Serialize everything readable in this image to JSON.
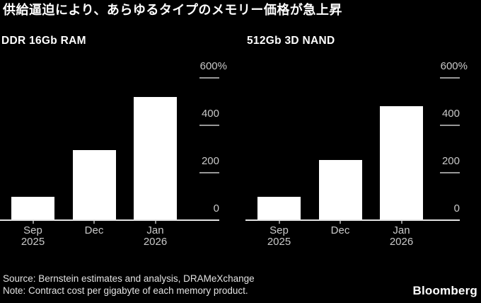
{
  "title": "供給逼迫により、あらゆるタイプのメモリー価格が急上昇",
  "footer": {
    "source": "Source: Bernstein estimates and analysis, DRAMeXchange",
    "note": "Note: Contract cost per gigabyte of each memory product.",
    "brand": "Bloomberg"
  },
  "colors": {
    "background": "#000000",
    "bar": "#ffffff",
    "title_text": "#ffffff",
    "axis_label": "#c9c9c9",
    "tick": "#979797",
    "baseline": "#e2e2e2",
    "footer_text": "#e3e3e3"
  },
  "chart_data": [
    {
      "type": "bar",
      "title": "DDR 16Gb RAM",
      "categories": [
        [
          "Sep",
          "2025"
        ],
        [
          "Dec"
        ],
        [
          "Jan",
          "2026"
        ]
      ],
      "values": [
        100,
        295,
        520
      ],
      "unit": "%",
      "ylim": [
        0,
        600
      ],
      "yticks": [
        0,
        200,
        400,
        600
      ],
      "ytick_labels": [
        "0",
        "200",
        "400",
        "600%"
      ],
      "axis_side": "right",
      "grid": false,
      "legend": false
    },
    {
      "type": "bar",
      "title": "512Gb 3D NAND",
      "categories": [
        [
          "Sep",
          "2025"
        ],
        [
          "Dec"
        ],
        [
          "Jan",
          "2026"
        ]
      ],
      "values": [
        100,
        255,
        480
      ],
      "unit": "%",
      "ylim": [
        0,
        600
      ],
      "yticks": [
        0,
        200,
        400,
        600
      ],
      "ytick_labels": [
        "0",
        "200",
        "400",
        "600%"
      ],
      "axis_side": "right",
      "grid": false,
      "legend": false
    }
  ]
}
